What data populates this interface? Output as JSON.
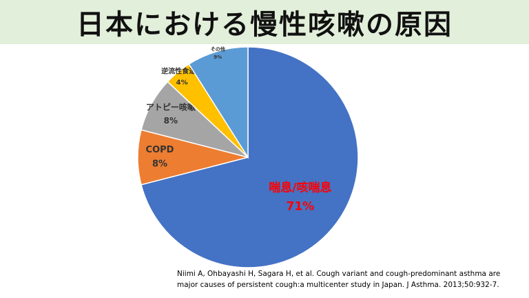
{
  "header": {
    "title": "日本における慢性咳嗽の原因"
  },
  "chart_data": {
    "type": "pie",
    "title": "日本における慢性咳嗽の原因",
    "start_angle_deg": 0,
    "direction": "clockwise",
    "slices": [
      {
        "label": "喘息/咳喘息",
        "value": 71,
        "value_label": "71%",
        "color": "#4472c4",
        "label_color": "#ff0000"
      },
      {
        "label": "COPD",
        "value": 8,
        "value_label": "8%",
        "color": "#ed7d31",
        "label_color": "#333333"
      },
      {
        "label": "アトピー咳嗽",
        "value": 8,
        "value_label": "8%",
        "color": "#a5a5a5",
        "label_color": "#333333"
      },
      {
        "label": "逆流性食道炎",
        "value": 4,
        "value_label": "4%",
        "color": "#ffc000",
        "label_color": "#333333"
      },
      {
        "label": "その他",
        "value": 9,
        "value_label": "9%",
        "color": "#5b9bd5",
        "label_color": "#333333"
      }
    ]
  },
  "citation": {
    "line1": "Niimi A, Ohbayashi H, Sagara H, et al. Cough variant and cough-predominant asthma are",
    "line2": "major causes of persistent cough:a multicenter study in Japan. J Asthma. 2013;50:932-7."
  }
}
